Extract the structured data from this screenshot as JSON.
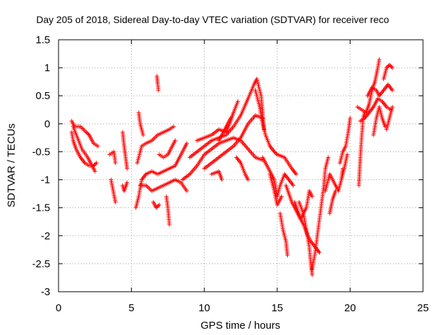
{
  "chart_data": {
    "type": "scatter",
    "title": "Day 205 of 2018, Sidereal Day-to-day VTEC variation (SDTVAR) for receiver reco",
    "xlabel": "GPS time / hours",
    "ylabel": "SDTVAR / TECUs",
    "xlim": [
      0,
      25
    ],
    "ylim": [
      -3,
      1.5
    ],
    "xticks": [
      0,
      5,
      10,
      15,
      20,
      25
    ],
    "xtick_labels": [
      "0",
      "5",
      "10",
      "15",
      "20",
      "25"
    ],
    "yticks": [
      -3,
      -2.5,
      -2,
      -1.5,
      -1,
      -0.5,
      0,
      0.5,
      1,
      1.5
    ],
    "ytick_labels": [
      "-3",
      "-2.5",
      "-2",
      "-1.5",
      "-1",
      "-0.5",
      "0",
      "0.5",
      "1",
      "1.5"
    ],
    "grid": true,
    "marker": "+",
    "color": "#ff0000",
    "tracks": [
      [
        [
          0.9,
          0.05
        ],
        [
          1.1,
          -0.05
        ],
        [
          1.5,
          -0.05
        ],
        [
          1.9,
          -0.15
        ],
        [
          2.1,
          -0.2
        ],
        [
          2.4,
          -0.35
        ],
        [
          2.7,
          -0.4
        ]
      ],
      [
        [
          0.9,
          -0.15
        ],
        [
          1.0,
          -0.3
        ],
        [
          1.2,
          -0.45
        ],
        [
          1.5,
          -0.6
        ],
        [
          1.8,
          -0.7
        ],
        [
          2.1,
          -0.75
        ],
        [
          2.4,
          -0.75
        ],
        [
          2.6,
          -0.7
        ]
      ],
      [
        [
          1.0,
          -0.05
        ],
        [
          1.3,
          -0.25
        ],
        [
          1.6,
          -0.45
        ],
        [
          2.0,
          -0.6
        ],
        [
          2.3,
          -0.75
        ],
        [
          2.5,
          -0.85
        ]
      ],
      [
        [
          3.5,
          -0.55
        ],
        [
          3.8,
          -0.5
        ],
        [
          3.9,
          -0.7
        ]
      ],
      [
        [
          3.6,
          -1.0
        ],
        [
          3.75,
          -1.2
        ],
        [
          3.9,
          -1.4
        ]
      ],
      [
        [
          4.4,
          -0.15
        ],
        [
          4.5,
          -0.4
        ],
        [
          4.6,
          -0.6
        ],
        [
          4.7,
          -0.8
        ]
      ],
      [
        [
          4.4,
          -1.1
        ],
        [
          4.5,
          -1.2
        ],
        [
          4.7,
          -1.05
        ]
      ],
      [
        [
          5.4,
          -0.7
        ],
        [
          5.7,
          -0.4
        ],
        [
          6.0,
          -0.35
        ],
        [
          6.4,
          -0.3
        ],
        [
          6.8,
          -0.2
        ],
        [
          7.2,
          -0.15
        ],
        [
          7.6,
          -0.1
        ],
        [
          7.9,
          -0.05
        ]
      ],
      [
        [
          5.3,
          -1.5
        ],
        [
          5.5,
          -1.3
        ],
        [
          5.7,
          -1.0
        ],
        [
          6.0,
          -0.9
        ],
        [
          6.4,
          -0.85
        ],
        [
          6.8,
          -0.9
        ],
        [
          7.2,
          -0.85
        ],
        [
          7.6,
          -0.8
        ],
        [
          8.0,
          -0.75
        ],
        [
          8.4,
          -0.55
        ],
        [
          8.8,
          -0.35
        ]
      ],
      [
        [
          5.6,
          -1.1
        ],
        [
          6.0,
          -1.1
        ],
        [
          6.4,
          -1.2
        ],
        [
          6.8,
          -1.15
        ],
        [
          7.2,
          -1.1
        ],
        [
          7.6,
          -1.05
        ],
        [
          8.0,
          -1.0
        ],
        [
          8.4,
          -1.05
        ],
        [
          8.8,
          -1.2
        ]
      ],
      [
        [
          5.5,
          0.2
        ],
        [
          5.6,
          0.0
        ],
        [
          5.8,
          -0.2
        ]
      ],
      [
        [
          6.9,
          -0.55
        ],
        [
          7.2,
          -0.6
        ],
        [
          7.5,
          -0.55
        ],
        [
          7.8,
          -0.4
        ],
        [
          8.0,
          -0.3
        ]
      ],
      [
        [
          6.5,
          -1.4
        ],
        [
          6.7,
          -1.5
        ],
        [
          6.9,
          -1.45
        ]
      ],
      [
        [
          6.75,
          0.85
        ],
        [
          6.8,
          0.72
        ],
        [
          6.85,
          0.6
        ]
      ],
      [
        [
          7.4,
          -1.3
        ],
        [
          7.5,
          -1.5
        ],
        [
          7.6,
          -1.8
        ]
      ],
      [
        [
          8.5,
          -1.0
        ],
        [
          9.0,
          -0.9
        ],
        [
          9.5,
          -0.75
        ],
        [
          10.0,
          -0.55
        ],
        [
          10.5,
          -0.45
        ],
        [
          11.0,
          -0.35
        ],
        [
          11.5,
          -0.3
        ],
        [
          12.0,
          -0.25
        ],
        [
          12.5,
          -0.3
        ],
        [
          13.0,
          -0.45
        ],
        [
          13.5,
          -0.6
        ],
        [
          14.0,
          -0.65
        ]
      ],
      [
        [
          9.0,
          -0.6
        ],
        [
          9.5,
          -0.5
        ],
        [
          10.0,
          -0.4
        ],
        [
          10.5,
          -0.3
        ],
        [
          11.0,
          -0.25
        ],
        [
          11.5,
          -0.2
        ],
        [
          12.0,
          -0.05
        ],
        [
          12.5,
          0.15
        ],
        [
          13.0,
          0.45
        ],
        [
          13.4,
          0.7
        ],
        [
          13.6,
          0.8
        ],
        [
          13.9,
          0.5
        ],
        [
          14.0,
          0.2
        ],
        [
          14.1,
          -0.1
        ]
      ],
      [
        [
          9.5,
          -0.3
        ],
        [
          10.0,
          -0.25
        ],
        [
          10.5,
          -0.2
        ],
        [
          11.0,
          -0.1
        ],
        [
          11.5,
          -0.15
        ],
        [
          11.8,
          0.05
        ],
        [
          12.0,
          0.2
        ],
        [
          12.3,
          0.4
        ]
      ],
      [
        [
          10.0,
          -0.8
        ],
        [
          10.5,
          -0.7
        ],
        [
          11.0,
          -0.6
        ],
        [
          11.5,
          -0.5
        ],
        [
          12.0,
          -0.4
        ],
        [
          12.5,
          -0.25
        ],
        [
          13.0,
          0.0
        ],
        [
          13.5,
          0.15
        ],
        [
          14.0,
          0.1
        ]
      ],
      [
        [
          10.5,
          -0.9
        ],
        [
          11.0,
          -0.85
        ],
        [
          11.2,
          -1.0
        ]
      ],
      [
        [
          11.0,
          -0.3
        ],
        [
          11.5,
          -0.05
        ],
        [
          11.8,
          0.1
        ]
      ],
      [
        [
          12.2,
          -0.6
        ],
        [
          12.5,
          -0.7
        ],
        [
          12.8,
          -0.9
        ],
        [
          13.0,
          -1.0
        ]
      ],
      [
        [
          13.5,
          0.6
        ],
        [
          13.8,
          0.3
        ],
        [
          14.0,
          0.0
        ],
        [
          14.2,
          -0.2
        ],
        [
          14.5,
          -0.4
        ],
        [
          14.8,
          -0.5
        ],
        [
          15.0,
          -0.55
        ],
        [
          15.5,
          -0.6
        ],
        [
          16.0,
          -0.8
        ],
        [
          16.3,
          -0.9
        ]
      ],
      [
        [
          14.0,
          -0.6
        ],
        [
          14.4,
          -0.8
        ],
        [
          14.8,
          -1.0
        ],
        [
          15.0,
          -1.3
        ],
        [
          15.2,
          -1.1
        ],
        [
          15.5,
          -0.9
        ],
        [
          15.8,
          -1.0
        ],
        [
          16.1,
          -1.1
        ]
      ],
      [
        [
          14.5,
          -0.9
        ],
        [
          14.8,
          -1.2
        ],
        [
          15.0,
          -1.45
        ],
        [
          15.3,
          -1.3
        ]
      ],
      [
        [
          15.2,
          -1.6
        ],
        [
          15.4,
          -1.9
        ],
        [
          15.6,
          -2.1
        ],
        [
          15.7,
          -2.35
        ]
      ],
      [
        [
          15.6,
          -1.1
        ],
        [
          16.0,
          -1.4
        ],
        [
          16.4,
          -1.6
        ],
        [
          16.8,
          -1.8
        ],
        [
          17.1,
          -2.0
        ],
        [
          17.3,
          -2.1
        ],
        [
          17.6,
          -2.2
        ],
        [
          17.9,
          -2.3
        ]
      ],
      [
        [
          16.5,
          -1.4
        ],
        [
          16.8,
          -1.6
        ],
        [
          17.0,
          -1.9
        ],
        [
          17.2,
          -2.2
        ],
        [
          17.3,
          -2.5
        ],
        [
          17.4,
          -2.7
        ]
      ],
      [
        [
          17.4,
          -2.6
        ],
        [
          17.6,
          -2.3
        ],
        [
          17.8,
          -1.9
        ],
        [
          18.0,
          -1.5
        ],
        [
          18.2,
          -1.1
        ],
        [
          18.3,
          -0.8
        ],
        [
          18.5,
          -0.6
        ]
      ],
      [
        [
          16.2,
          -1.4
        ],
        [
          16.6,
          -1.7
        ],
        [
          17.0,
          -1.5
        ],
        [
          17.2,
          -1.2
        ],
        [
          17.4,
          -1.3
        ]
      ],
      [
        [
          18.3,
          -1.2
        ],
        [
          18.6,
          -0.9
        ],
        [
          18.9,
          -1.05
        ],
        [
          19.2,
          -1.2
        ],
        [
          19.4,
          -1.0
        ],
        [
          19.5,
          -0.8
        ]
      ],
      [
        [
          18.6,
          -1.6
        ],
        [
          18.8,
          -1.35
        ],
        [
          19.0,
          -1.2
        ]
      ],
      [
        [
          19.3,
          -0.7
        ],
        [
          19.5,
          -0.5
        ],
        [
          19.7,
          -0.4
        ],
        [
          19.9,
          -0.1
        ],
        [
          20.0,
          0.1
        ]
      ],
      [
        [
          19.4,
          -1.0
        ],
        [
          19.6,
          -0.8
        ],
        [
          19.8,
          -0.55
        ]
      ],
      [
        [
          20.6,
          -1.1
        ],
        [
          20.7,
          -0.6
        ],
        [
          20.8,
          -0.2
        ],
        [
          20.9,
          0.1
        ],
        [
          21.0,
          0.2
        ]
      ],
      [
        [
          20.5,
          0.3
        ],
        [
          20.8,
          0.25
        ],
        [
          21.1,
          0.2
        ],
        [
          21.3,
          0.35
        ],
        [
          21.5,
          0.6
        ],
        [
          21.7,
          0.75
        ],
        [
          21.9,
          1.0
        ],
        [
          22.0,
          1.15
        ]
      ],
      [
        [
          20.7,
          0.05
        ],
        [
          21.0,
          0.1
        ],
        [
          21.3,
          0.2
        ],
        [
          21.6,
          0.3
        ],
        [
          21.9,
          0.45
        ],
        [
          22.2,
          0.4
        ],
        [
          22.5,
          0.3
        ],
        [
          22.8,
          0.25
        ]
      ],
      [
        [
          21.2,
          0.5
        ],
        [
          21.5,
          0.65
        ],
        [
          21.8,
          0.6
        ],
        [
          22.0,
          0.5
        ],
        [
          22.3,
          0.6
        ],
        [
          22.6,
          0.7
        ],
        [
          22.9,
          0.6
        ]
      ],
      [
        [
          21.6,
          -0.2
        ],
        [
          21.8,
          0.1
        ],
        [
          22.0,
          0.3
        ],
        [
          22.2,
          0.1
        ],
        [
          22.4,
          -0.05
        ]
      ],
      [
        [
          22.3,
          0.8
        ],
        [
          22.5,
          1.0
        ],
        [
          22.7,
          1.05
        ],
        [
          22.9,
          1.0
        ]
      ],
      [
        [
          22.5,
          -0.1
        ],
        [
          22.7,
          0.1
        ],
        [
          22.9,
          0.3
        ]
      ]
    ]
  }
}
